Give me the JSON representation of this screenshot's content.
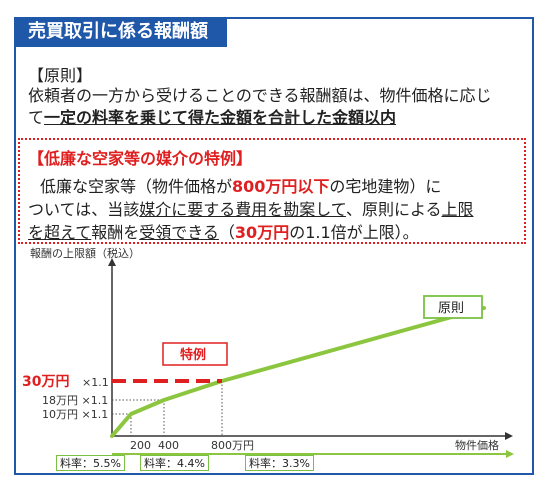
{
  "header": {
    "title": "売買取引に係る報酬額"
  },
  "principle": {
    "heading": "【原則】",
    "line1": "依頼者の一方から受けることのできる報酬額は、物件価格に応じ",
    "line2_prefix": "て",
    "line2_bold": "一定の料率を乗じて得た金額を合計した金額以内"
  },
  "special": {
    "heading": "【低廉な空家等の媒介の特例】",
    "l1_a": "低廉な空家等（物件価格が",
    "l1_red": "800万円以下",
    "l1_b": "の宅地建物）に",
    "l2_a": "ついては、当該",
    "l2_u1": "媒介に要する費用を勘案して",
    "l2_b": "、原則による",
    "l2_u2": "上限",
    "l3_u1": "を超えて",
    "l3_a": "報酬を",
    "l3_u2": "受領できる",
    "l3_b": "（",
    "l3_red": "30万円",
    "l3_c": "の1.1倍が上限）。"
  },
  "chart_data": {
    "type": "line",
    "ylabel": "報酬の上限額（税込）",
    "xlabel": "物件価格",
    "x_ticks": [
      "200",
      "400",
      "800万円"
    ],
    "y_ticks": [
      "10万円 ×1.1",
      "18万円 ×1.1"
    ],
    "special_y_label_red": "30万円",
    "special_y_label_suffix": "×1.1",
    "series": [
      {
        "name": "原則",
        "x": [
          0,
          200,
          400,
          800,
          1500
        ],
        "y": [
          0,
          10,
          18,
          30,
          53
        ]
      },
      {
        "name": "特例",
        "x": [
          0,
          800
        ],
        "y": [
          30,
          30
        ]
      }
    ],
    "rates": [
      "料率：5.5%",
      "料率：4.4%",
      "料率：3.3%"
    ],
    "colors": {
      "principle_line": "#8cc63f",
      "special_line": "#e02020",
      "axis": "#333333"
    }
  }
}
